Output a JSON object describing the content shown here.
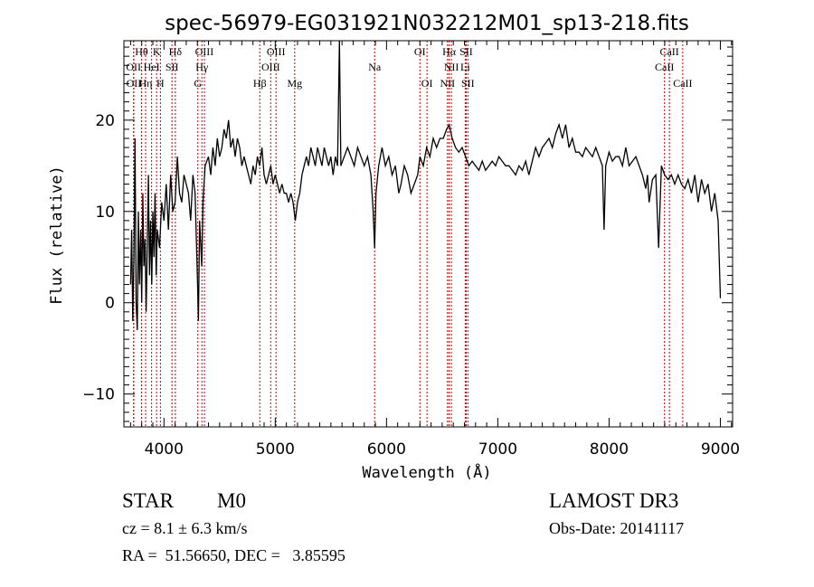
{
  "chart_data": {
    "type": "line",
    "title": "spec-56979-EG031921N032212M01_sp13-218.fits",
    "xlabel": "Wavelength (Å)",
    "ylabel": "Flux (relative)",
    "xlim": [
      3640,
      9110
    ],
    "ylim": [
      -13.6,
      28.7
    ],
    "xticks": [
      4000,
      5000,
      6000,
      7000,
      8000,
      9000
    ],
    "yticks": [
      -10,
      0,
      10,
      20
    ],
    "grid": false,
    "line_color": "#000000",
    "marker_color": "#c00000",
    "series": [
      {
        "name": "spectrum",
        "x": [
          3700,
          3710,
          3720,
          3730,
          3740,
          3750,
          3760,
          3770,
          3780,
          3790,
          3800,
          3810,
          3820,
          3830,
          3840,
          3850,
          3860,
          3870,
          3880,
          3890,
          3900,
          3910,
          3920,
          3930,
          3940,
          3960,
          3980,
          4000,
          4020,
          4040,
          4060,
          4080,
          4100,
          4120,
          4140,
          4160,
          4180,
          4200,
          4220,
          4240,
          4260,
          4280,
          4300,
          4310,
          4320,
          4340,
          4350,
          4370,
          4400,
          4420,
          4440,
          4460,
          4480,
          4500,
          4520,
          4540,
          4560,
          4580,
          4600,
          4620,
          4640,
          4660,
          4680,
          4700,
          4720,
          4740,
          4760,
          4780,
          4800,
          4820,
          4840,
          4860,
          4880,
          4900,
          4920,
          4940,
          4960,
          4980,
          5000,
          5020,
          5040,
          5060,
          5080,
          5100,
          5120,
          5140,
          5160,
          5180,
          5200,
          5220,
          5240,
          5260,
          5280,
          5300,
          5320,
          5340,
          5360,
          5380,
          5400,
          5420,
          5440,
          5460,
          5480,
          5500,
          5520,
          5540,
          5560,
          5577,
          5590,
          5620,
          5650,
          5680,
          5710,
          5740,
          5770,
          5800,
          5830,
          5860,
          5880,
          5893,
          5905,
          5930,
          5960,
          5990,
          6020,
          6050,
          6080,
          6110,
          6130,
          6160,
          6190,
          6220,
          6250,
          6280,
          6300,
          6330,
          6360,
          6390,
          6420,
          6450,
          6480,
          6510,
          6540,
          6563,
          6590,
          6620,
          6650,
          6680,
          6710,
          6740,
          6770,
          6800,
          6830,
          6860,
          6890,
          6920,
          6950,
          6980,
          7010,
          7040,
          7070,
          7100,
          7130,
          7160,
          7190,
          7220,
          7250,
          7280,
          7310,
          7340,
          7370,
          7400,
          7430,
          7460,
          7490,
          7520,
          7550,
          7580,
          7610,
          7640,
          7670,
          7700,
          7730,
          7760,
          7790,
          7820,
          7850,
          7880,
          7910,
          7940,
          7955,
          7970,
          8000,
          8030,
          8060,
          8090,
          8120,
          8150,
          8180,
          8210,
          8240,
          8270,
          8300,
          8330,
          8345,
          8360,
          8390,
          8420,
          8445,
          8470,
          8500,
          8530,
          8560,
          8590,
          8620,
          8650,
          8680,
          8710,
          8740,
          8770,
          8800,
          8830,
          8860,
          8890,
          8920,
          8950,
          8980,
          9000
        ],
        "y": [
          2,
          8,
          -2,
          5,
          18,
          0,
          -3,
          10,
          2,
          8,
          0,
          12,
          4,
          7,
          -1,
          6,
          14,
          3,
          9,
          2,
          10,
          5,
          12,
          3,
          8,
          6,
          11,
          9,
          13,
          8,
          14,
          10,
          11,
          16,
          12,
          11,
          14,
          13,
          12,
          9,
          14,
          12,
          3,
          -2,
          9,
          4,
          11,
          15,
          16,
          14,
          17,
          15,
          18,
          16,
          17,
          19,
          18,
          20,
          17,
          18,
          16,
          18,
          17,
          15,
          16,
          15,
          14,
          13,
          15,
          14,
          16,
          15,
          17,
          14,
          13,
          14,
          15,
          13,
          14,
          13,
          12,
          13,
          12,
          12,
          11,
          12,
          11,
          9,
          11,
          12,
          14,
          15,
          16,
          15,
          17,
          16,
          15,
          17,
          16,
          15,
          17,
          16,
          15,
          16,
          14,
          16,
          15,
          29,
          15,
          16,
          17,
          16,
          15,
          17,
          16,
          15,
          16,
          14,
          10,
          6,
          12,
          15,
          17,
          15,
          16,
          14,
          15,
          12,
          13,
          15,
          14,
          12,
          13,
          14,
          16,
          15,
          17,
          16,
          18,
          17,
          18,
          18,
          19,
          19.5,
          18,
          17,
          16.5,
          17,
          16,
          15,
          15.5,
          15,
          14.5,
          15.5,
          14.5,
          15,
          15.5,
          15,
          16,
          15.5,
          15,
          15,
          14.5,
          14,
          15,
          14.5,
          15.5,
          14,
          15.5,
          17,
          16,
          17,
          17.5,
          18,
          17,
          18.5,
          19.5,
          18,
          19.5,
          17,
          18,
          16.5,
          16.5,
          16,
          17,
          16.5,
          16,
          17,
          16,
          15,
          8,
          15,
          16.5,
          15.5,
          16,
          16,
          15,
          17,
          15,
          15.5,
          16,
          15,
          14,
          12.5,
          14,
          11,
          13.5,
          14,
          6,
          15,
          14,
          13.5,
          14,
          13,
          14,
          13,
          12.5,
          13.5,
          12,
          14,
          11,
          13.5,
          12,
          13,
          10,
          12,
          9,
          0.5
        ]
      }
    ],
    "spectral_lines": [
      {
        "label": "OII",
        "wavelength": 3727,
        "tier": 1
      },
      {
        "label": "Hθ",
        "wavelength": 3798,
        "tier": 0
      },
      {
        "label": "OII",
        "wavelength": 3729,
        "tier": 2
      },
      {
        "label": "Hη",
        "wavelength": 3835,
        "tier": 2
      },
      {
        "label": "HeI",
        "wavelength": 3889,
        "tier": 1
      },
      {
        "label": "K",
        "wavelength": 3934,
        "tier": 0
      },
      {
        "label": "H",
        "wavelength": 3968,
        "tier": 2
      },
      {
        "label": "SII",
        "wavelength": 4072,
        "tier": 1
      },
      {
        "label": "Hδ",
        "wavelength": 4102,
        "tier": 0
      },
      {
        "label": "G",
        "wavelength": 4304,
        "tier": 2
      },
      {
        "label": "Hγ",
        "wavelength": 4341,
        "tier": 1
      },
      {
        "label": "OIII",
        "wavelength": 4363,
        "tier": 0
      },
      {
        "label": "Hβ",
        "wavelength": 4861,
        "tier": 2
      },
      {
        "label": "OIII",
        "wavelength": 4959,
        "tier": 1
      },
      {
        "label": "OIII",
        "wavelength": 5007,
        "tier": 0
      },
      {
        "label": "Mg",
        "wavelength": 5175,
        "tier": 2
      },
      {
        "label": "Na",
        "wavelength": 5893,
        "tier": 1
      },
      {
        "label": "OI",
        "wavelength": 6300,
        "tier": 0
      },
      {
        "label": "OI",
        "wavelength": 6364,
        "tier": 2
      },
      {
        "label": "NII",
        "wavelength": 6548,
        "tier": 2
      },
      {
        "label": "Hα",
        "wavelength": 6563,
        "tier": 0
      },
      {
        "label": "NII",
        "wavelength": 6583,
        "tier": 1
      },
      {
        "label": "Li",
        "wavelength": 6707,
        "tier": 1
      },
      {
        "label": "SII",
        "wavelength": 6716,
        "tier": 0
      },
      {
        "label": "SII",
        "wavelength": 6731,
        "tier": 2
      },
      {
        "label": "CaII",
        "wavelength": 8498,
        "tier": 1
      },
      {
        "label": "CaII",
        "wavelength": 8542,
        "tier": 0
      },
      {
        "label": "CaII",
        "wavelength": 8662,
        "tier": 2
      }
    ]
  },
  "info": {
    "class": "STAR",
    "subclass": "M0",
    "cz": "cz = 8.1 ± 6.3 km/s",
    "coords": "RA =  51.56650, DEC =   3.85595",
    "survey": "LAMOST DR3",
    "obs_date": "Obs-Date: 20141117"
  }
}
